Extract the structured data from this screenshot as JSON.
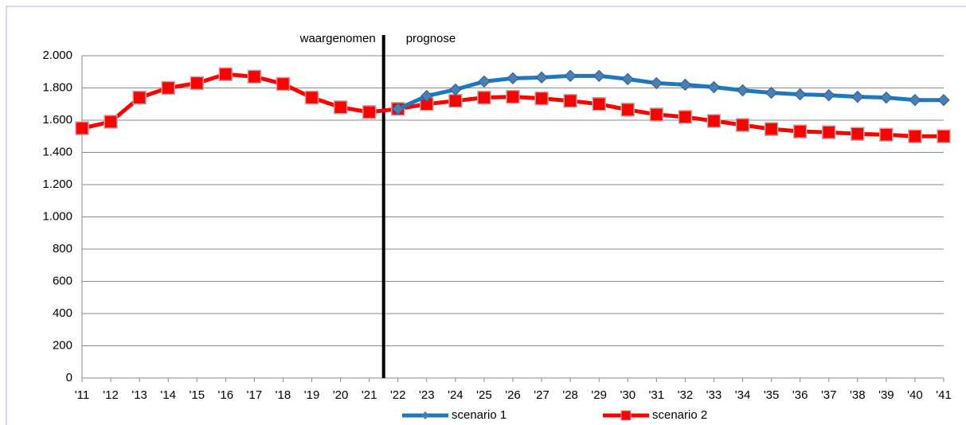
{
  "chart_data": {
    "type": "line",
    "categories": [
      "'11",
      "'12",
      "'13",
      "'14",
      "'15",
      "'16",
      "'17",
      "'18",
      "'19",
      "'20",
      "'21",
      "'22",
      "'23",
      "'24",
      "'25",
      "'26",
      "'27",
      "'28",
      "'29",
      "'30",
      "'31",
      "'32",
      "'33",
      "'34",
      "'35",
      "'36",
      "'37",
      "'38",
      "'39",
      "'40",
      "'41"
    ],
    "series": [
      {
        "name": "scenario 1",
        "color": "#1f77c0",
        "marker": "diamond",
        "values": [
          null,
          null,
          null,
          null,
          null,
          null,
          null,
          null,
          null,
          null,
          null,
          1670,
          1750,
          1790,
          1840,
          1860,
          1865,
          1875,
          1875,
          1855,
          1830,
          1820,
          1805,
          1785,
          1770,
          1760,
          1755,
          1745,
          1740,
          1725,
          1725
        ]
      },
      {
        "name": "scenario 2",
        "color": "#ff0000",
        "marker": "square",
        "values": [
          1550,
          1590,
          1740,
          1800,
          1830,
          1885,
          1870,
          1825,
          1740,
          1680,
          1650,
          1670,
          1700,
          1720,
          1740,
          1745,
          1735,
          1720,
          1700,
          1665,
          1635,
          1620,
          1595,
          1570,
          1545,
          1530,
          1525,
          1515,
          1510,
          1500,
          1500
        ]
      }
    ],
    "annotations": [
      "waargenomen",
      "prognose"
    ],
    "ylim": [
      0,
      2000
    ],
    "yticks": [
      0,
      200,
      400,
      600,
      800,
      {
        "value": 1000,
        "label": "1.000"
      },
      {
        "value": 1200,
        "label": "1.200"
      },
      {
        "value": 1400,
        "label": "1.400"
      },
      {
        "value": 1600,
        "label": "1.600"
      },
      {
        "value": 1800,
        "label": "1.800"
      },
      {
        "value": 2000,
        "label": "2.000"
      }
    ],
    "grid": true
  }
}
